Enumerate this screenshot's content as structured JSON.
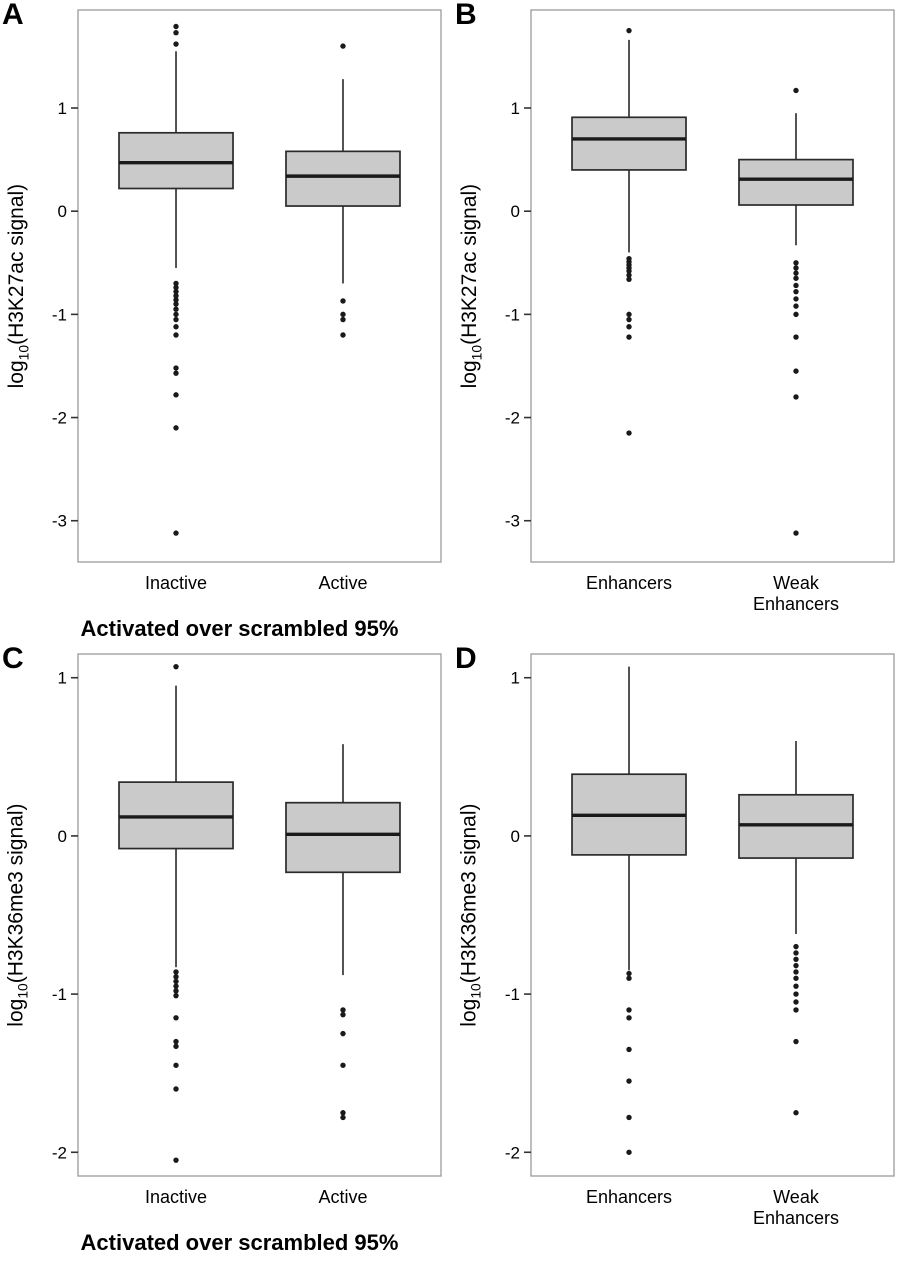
{
  "figure": {
    "background": "#ffffff",
    "box_fill": "#cacaca",
    "box_stroke": "#2b2b2b",
    "median_color": "#1a1a1a",
    "whisker_color": "#1a1a1a",
    "outlier_color": "#1a1a1a",
    "panel_border": "#9a9a9a",
    "tick_color": "#333333",
    "text_color": "#000000"
  },
  "chart_data": [
    {
      "type": "boxplot",
      "panel": "A",
      "ylabel": "log10(H3K27ac signal)",
      "ylabel_parts": {
        "prefix": "log",
        "sub": "10",
        "rest": "(H3K27ac signal)"
      },
      "xlabel": "Activated over scrambled 95%",
      "ylim": [
        -3.4,
        1.95
      ],
      "yticks": [
        1,
        0,
        -1,
        -2,
        -3
      ],
      "legend": "none",
      "grid": "off",
      "boxes": [
        {
          "category": "Inactive",
          "category_lines": [
            "Inactive"
          ],
          "whisker_low": -0.55,
          "q1": 0.22,
          "median": 0.47,
          "q3": 0.76,
          "whisker_high": 1.55,
          "outliers": [
            1.79,
            1.73,
            1.62,
            -0.7,
            -0.74,
            -0.78,
            -0.82,
            -0.86,
            -0.9,
            -0.95,
            -1.0,
            -1.05,
            -1.12,
            -1.2,
            -1.52,
            -1.57,
            -1.78,
            -2.1,
            -3.12
          ]
        },
        {
          "category": "Active",
          "category_lines": [
            "Active"
          ],
          "whisker_low": -0.7,
          "q1": 0.05,
          "median": 0.34,
          "q3": 0.58,
          "whisker_high": 1.28,
          "outliers": [
            1.6,
            -0.87,
            -1.0,
            -1.05,
            -1.2
          ]
        }
      ]
    },
    {
      "type": "boxplot",
      "panel": "B",
      "ylabel": "log10(H3K27ac signal)",
      "ylabel_parts": {
        "prefix": "log",
        "sub": "10",
        "rest": "(H3K27ac signal)"
      },
      "xlabel": "",
      "ylim": [
        -3.4,
        1.95
      ],
      "yticks": [
        1,
        0,
        -1,
        -2,
        -3
      ],
      "legend": "none",
      "grid": "off",
      "boxes": [
        {
          "category": "Enhancers",
          "category_lines": [
            "Enhancers"
          ],
          "whisker_low": -0.4,
          "q1": 0.4,
          "median": 0.7,
          "q3": 0.91,
          "whisker_high": 1.66,
          "outliers": [
            1.75,
            -0.46,
            -0.49,
            -0.52,
            -0.55,
            -0.58,
            -0.62,
            -0.66,
            -1.0,
            -1.05,
            -1.12,
            -1.22,
            -2.15
          ]
        },
        {
          "category": "Weak Enhancers",
          "category_lines": [
            "Weak",
            "Enhancers"
          ],
          "whisker_low": -0.33,
          "q1": 0.06,
          "median": 0.31,
          "q3": 0.5,
          "whisker_high": 0.95,
          "outliers": [
            1.17,
            -0.5,
            -0.55,
            -0.6,
            -0.65,
            -0.72,
            -0.78,
            -0.85,
            -0.92,
            -1.0,
            -1.22,
            -1.55,
            -1.8,
            -3.12
          ]
        }
      ]
    },
    {
      "type": "boxplot",
      "panel": "C",
      "ylabel": "log10(H3K36me3 signal)",
      "ylabel_parts": {
        "prefix": "log",
        "sub": "10",
        "rest": "(H3K36me3 signal)"
      },
      "xlabel": "Activated over scrambled 95%",
      "ylim": [
        -2.15,
        1.15
      ],
      "yticks": [
        1,
        0,
        -1,
        -2
      ],
      "legend": "none",
      "grid": "off",
      "boxes": [
        {
          "category": "Inactive",
          "category_lines": [
            "Inactive"
          ],
          "whisker_low": -0.83,
          "q1": -0.08,
          "median": 0.12,
          "q3": 0.34,
          "whisker_high": 0.95,
          "outliers": [
            1.07,
            -0.86,
            -0.89,
            -0.92,
            -0.95,
            -0.98,
            -1.01,
            -1.15,
            -1.3,
            -1.33,
            -1.45,
            -1.6,
            -2.05
          ]
        },
        {
          "category": "Active",
          "category_lines": [
            "Active"
          ],
          "whisker_low": -0.88,
          "q1": -0.23,
          "median": 0.01,
          "q3": 0.21,
          "whisker_high": 0.58,
          "outliers": [
            -1.1,
            -1.13,
            -1.25,
            -1.45,
            -1.75,
            -1.78
          ]
        }
      ]
    },
    {
      "type": "boxplot",
      "panel": "D",
      "ylabel": "log10(H3K36me3 signal)",
      "ylabel_parts": {
        "prefix": "log",
        "sub": "10",
        "rest": "(H3K36me3 signal)"
      },
      "xlabel": "",
      "ylim": [
        -2.15,
        1.15
      ],
      "yticks": [
        1,
        0,
        -1,
        -2
      ],
      "legend": "none",
      "grid": "off",
      "boxes": [
        {
          "category": "Enhancers",
          "category_lines": [
            "Enhancers"
          ],
          "whisker_low": -0.85,
          "q1": -0.12,
          "median": 0.13,
          "q3": 0.39,
          "whisker_high": 1.07,
          "outliers": [
            -0.87,
            -0.9,
            -1.1,
            -1.15,
            -1.35,
            -1.55,
            -1.78,
            -2.0
          ]
        },
        {
          "category": "Weak Enhancers",
          "category_lines": [
            "Weak",
            "Enhancers"
          ],
          "whisker_low": -0.62,
          "q1": -0.14,
          "median": 0.07,
          "q3": 0.26,
          "whisker_high": 0.6,
          "outliers": [
            -0.7,
            -0.74,
            -0.78,
            -0.82,
            -0.86,
            -0.9,
            -0.95,
            -1.0,
            -1.05,
            -1.1,
            -1.3,
            -1.75
          ]
        }
      ]
    }
  ]
}
